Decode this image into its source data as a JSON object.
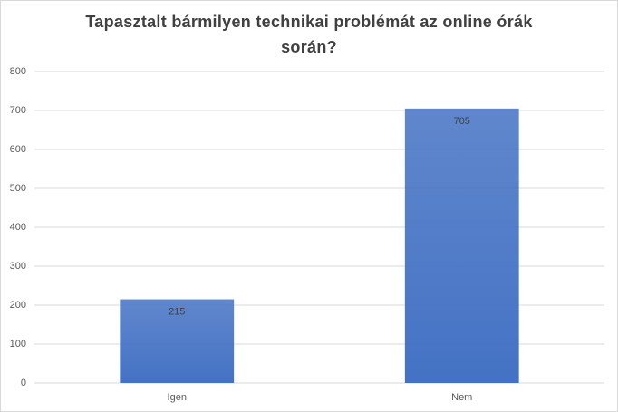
{
  "chart_data": {
    "type": "bar",
    "title": "Tapasztalt bármilyen technikai problémát az online órák során?",
    "categories": [
      "Igen",
      "Nem"
    ],
    "values": [
      215,
      705
    ],
    "color": "#4472c4",
    "ylim": [
      0,
      800
    ],
    "yticks": [
      0,
      100,
      200,
      300,
      400,
      500,
      600,
      700,
      800
    ],
    "grid": true
  }
}
